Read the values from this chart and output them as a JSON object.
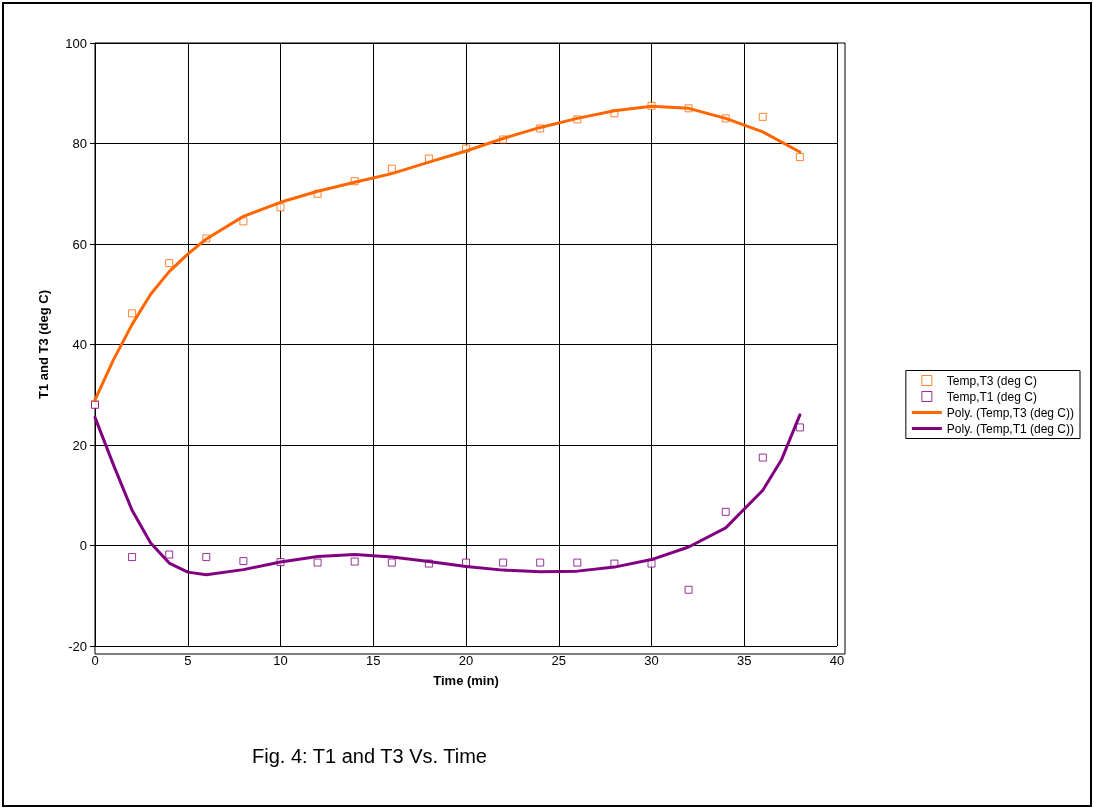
{
  "chart_data": {
    "type": "scatter",
    "xlabel": "Time (min)",
    "ylabel": "T1 and T3 (deg C)",
    "xlim": [
      0,
      40
    ],
    "xticks": [
      0,
      5,
      10,
      15,
      20,
      25,
      30,
      35,
      40
    ],
    "ylim": [
      -20,
      100
    ],
    "yticks": [
      -20,
      0,
      20,
      40,
      60,
      80,
      100
    ],
    "grid": true,
    "legend": "right",
    "annotations": [
      "Fig. 4: T1 and T3 Vs. Time"
    ],
    "series": [
      {
        "name": "Temp,T3 (deg C)",
        "marker": "square",
        "color": "#ff6600",
        "x": [
          0,
          2,
          4,
          6,
          8,
          10,
          12,
          14,
          16,
          18,
          20,
          22,
          24,
          26,
          28,
          30,
          32,
          34,
          36,
          38
        ],
        "values": [
          28.1,
          46.2,
          56.2,
          61.1,
          64.5,
          67.3,
          70,
          72.5,
          75,
          77,
          79,
          80.8,
          83,
          84.8,
          86,
          87.5,
          87,
          85,
          85.3,
          77.3
        ]
      },
      {
        "name": "Temp,T1 (deg C)",
        "marker": "square",
        "color": "#800080",
        "x": [
          0,
          2,
          4,
          6,
          8,
          10,
          12,
          14,
          16,
          18,
          20,
          22,
          24,
          26,
          28,
          30,
          32,
          34,
          36,
          38
        ],
        "values": [
          28,
          -2.3,
          -1.8,
          -2.3,
          -3.1,
          -3.3,
          -3.4,
          -3.2,
          -3.4,
          -3.6,
          -3.4,
          -3.4,
          -3.4,
          -3.4,
          -3.6,
          -3.6,
          -8.8,
          6.7,
          17.5,
          23.5
        ]
      },
      {
        "name": "Poly. (Temp,T3 (deg C))",
        "type": "line",
        "marker": "none",
        "line_style": "solid",
        "color": "#ff6600",
        "x": [
          0,
          1,
          2,
          3,
          4,
          5,
          6,
          8,
          10,
          12,
          14,
          16,
          18,
          20,
          22,
          24,
          26,
          28,
          30,
          32,
          34,
          36,
          38
        ],
        "values": [
          29,
          37,
          44,
          50,
          54.5,
          58,
          61,
          65.5,
          68.3,
          70.5,
          72.3,
          74,
          76.3,
          78.5,
          81,
          83.2,
          85,
          86.5,
          87.4,
          87,
          85,
          82.3,
          78.3
        ]
      },
      {
        "name": "Poly. (Temp,T1 (deg C))",
        "type": "line",
        "marker": "none",
        "line_style": "solid",
        "color": "#800080",
        "x": [
          0,
          1,
          2,
          3,
          4,
          5,
          6,
          8,
          10,
          12,
          14,
          16,
          18,
          20,
          22,
          24,
          26,
          28,
          30,
          32,
          34,
          36,
          37,
          38
        ],
        "values": [
          25.5,
          16,
          7,
          0.5,
          -3.5,
          -5.3,
          -5.8,
          -4.8,
          -3.3,
          -2.2,
          -1.8,
          -2.3,
          -3.2,
          -4.2,
          -4.9,
          -5.2,
          -5.1,
          -4.3,
          -2.8,
          -0.3,
          3.5,
          11,
          17,
          26
        ]
      }
    ]
  }
}
